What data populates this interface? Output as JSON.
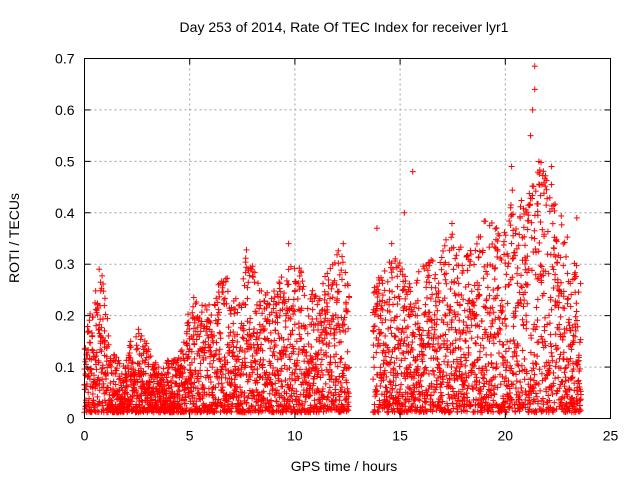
{
  "chart_data": {
    "type": "scatter",
    "title": "Day 253 of 2014, Rate Of TEC Index for receiver lyr1",
    "xlabel": "GPS time / hours",
    "ylabel": "ROTI / TECUs",
    "xlim": [
      0,
      25
    ],
    "ylim": [
      0,
      0.7
    ],
    "x_ticks": [
      "0",
      "5",
      "10",
      "15",
      "20",
      "25"
    ],
    "y_ticks": [
      "0",
      "0.1",
      "0.2",
      "0.3",
      "0.4",
      "0.5",
      "0.6",
      "0.7"
    ],
    "grid": true,
    "marker": "+",
    "color": "#ff0000",
    "data_gap_hours": [
      12.6,
      13.7
    ],
    "notable_points": [
      {
        "x": 15.6,
        "y": 0.48
      },
      {
        "x": 21.4,
        "y": 0.685
      },
      {
        "x": 21.4,
        "y": 0.64
      },
      {
        "x": 21.3,
        "y": 0.6
      },
      {
        "x": 21.2,
        "y": 0.55
      },
      {
        "x": 22.2,
        "y": 0.49
      },
      {
        "x": 20.3,
        "y": 0.49
      },
      {
        "x": 9.7,
        "y": 0.34
      },
      {
        "x": 12.3,
        "y": 0.34
      },
      {
        "x": 13.9,
        "y": 0.37
      },
      {
        "x": 14.6,
        "y": 0.34
      },
      {
        "x": 15.2,
        "y": 0.4
      },
      {
        "x": 23.4,
        "y": 0.39
      }
    ],
    "envelope": [
      {
        "x": 0.0,
        "y": 0.15
      },
      {
        "x": 0.4,
        "y": 0.24
      },
      {
        "x": 0.8,
        "y": 0.33
      },
      {
        "x": 1.2,
        "y": 0.15
      },
      {
        "x": 1.8,
        "y": 0.1
      },
      {
        "x": 2.5,
        "y": 0.19
      },
      {
        "x": 3.5,
        "y": 0.1
      },
      {
        "x": 4.5,
        "y": 0.13
      },
      {
        "x": 5.2,
        "y": 0.25
      },
      {
        "x": 6.0,
        "y": 0.22
      },
      {
        "x": 6.6,
        "y": 0.29
      },
      {
        "x": 7.4,
        "y": 0.22
      },
      {
        "x": 7.7,
        "y": 0.33
      },
      {
        "x": 8.5,
        "y": 0.24
      },
      {
        "x": 9.0,
        "y": 0.27
      },
      {
        "x": 9.7,
        "y": 0.3
      },
      {
        "x": 10.4,
        "y": 0.29
      },
      {
        "x": 11.0,
        "y": 0.24
      },
      {
        "x": 11.6,
        "y": 0.29
      },
      {
        "x": 12.2,
        "y": 0.34
      },
      {
        "x": 12.6,
        "y": 0.27
      },
      {
        "x": 13.7,
        "y": 0.25
      },
      {
        "x": 14.2,
        "y": 0.29
      },
      {
        "x": 14.8,
        "y": 0.32
      },
      {
        "x": 15.5,
        "y": 0.27
      },
      {
        "x": 16.2,
        "y": 0.33
      },
      {
        "x": 16.8,
        "y": 0.29
      },
      {
        "x": 17.4,
        "y": 0.39
      },
      {
        "x": 18.0,
        "y": 0.32
      },
      {
        "x": 18.6,
        "y": 0.35
      },
      {
        "x": 19.2,
        "y": 0.41
      },
      {
        "x": 19.8,
        "y": 0.37
      },
      {
        "x": 20.4,
        "y": 0.46
      },
      {
        "x": 21.0,
        "y": 0.44
      },
      {
        "x": 21.6,
        "y": 0.51
      },
      {
        "x": 22.2,
        "y": 0.46
      },
      {
        "x": 22.8,
        "y": 0.38
      },
      {
        "x": 23.4,
        "y": 0.3
      },
      {
        "x": 23.6,
        "y": 0.27
      }
    ]
  }
}
